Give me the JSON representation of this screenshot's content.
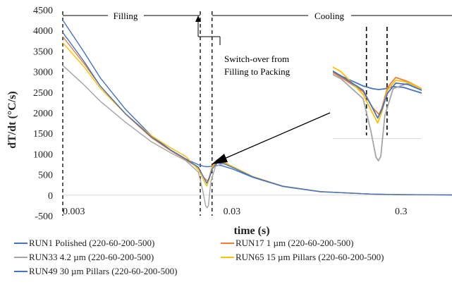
{
  "chart_data": {
    "type": "line",
    "xlabel": "time (s)",
    "ylabel": "dT/dt (°C/s)",
    "x_scale": "log",
    "xlim": [
      0.003,
      0.6
    ],
    "ylim": [
      -500,
      4500
    ],
    "x_ticks": [
      {
        "value": 0.003,
        "label": "0.003"
      },
      {
        "value": 0.03,
        "label": "0.03"
      },
      {
        "value": 0.3,
        "label": "0.3"
      }
    ],
    "y_ticks": [
      -500,
      0,
      500,
      1000,
      1500,
      2000,
      2500,
      3000,
      3500,
      4000,
      4500
    ],
    "grid": false,
    "legend_position": "bottom",
    "phases": [
      {
        "label": "Filling",
        "x_start": 0.003,
        "x_end": 0.0195
      },
      {
        "label": "Cooling",
        "x_start": 0.0229,
        "x_end": 0.6
      }
    ],
    "markers": [
      0.0195,
      0.0229
    ],
    "annotation": "Switch-over from\nFilling to Packing",
    "series": [
      {
        "name": "RUN1 Polished (220-60-200-500)",
        "color": "#4472C4",
        "x": [
          0.003,
          0.004,
          0.005,
          0.007,
          0.01,
          0.013,
          0.016,
          0.019,
          0.0205,
          0.0215,
          0.0225,
          0.024,
          0.026,
          0.03,
          0.04,
          0.06,
          0.1,
          0.2,
          0.3,
          0.6
        ],
        "y": [
          4250,
          3480,
          2850,
          2100,
          1450,
          1100,
          880,
          740,
          700,
          690,
          700,
          730,
          720,
          640,
          430,
          210,
          80,
          25,
          12,
          5
        ]
      },
      {
        "name": "RUN17 1 µm (220-60-200-500)",
        "color": "#ED7D31",
        "x": [
          0.003,
          0.004,
          0.005,
          0.007,
          0.01,
          0.013,
          0.016,
          0.019,
          0.0205,
          0.0215,
          0.022,
          0.023,
          0.0245,
          0.027,
          0.03,
          0.04,
          0.06,
          0.1,
          0.2,
          0.3,
          0.6
        ],
        "y": [
          3850,
          3200,
          2650,
          1980,
          1400,
          1080,
          860,
          660,
          430,
          340,
          430,
          720,
          860,
          800,
          700,
          450,
          220,
          85,
          25,
          12,
          5
        ]
      },
      {
        "name": "RUN33 4.2 µm (220-60-200-500)",
        "color": "#A5A5A5",
        "x": [
          0.003,
          0.004,
          0.005,
          0.007,
          0.01,
          0.013,
          0.016,
          0.019,
          0.0202,
          0.021,
          0.0214,
          0.0218,
          0.0225,
          0.024,
          0.027,
          0.03,
          0.04,
          0.06,
          0.1,
          0.2,
          0.3,
          0.6
        ],
        "y": [
          3150,
          2680,
          2280,
          1780,
          1300,
          1030,
          840,
          560,
          100,
          -260,
          -310,
          -250,
          320,
          700,
          780,
          700,
          440,
          215,
          85,
          25,
          12,
          5
        ]
      },
      {
        "name": "RUN65 15 µm Pillars (220-60-200-500)",
        "color": "#FFC000",
        "x": [
          0.003,
          0.004,
          0.005,
          0.007,
          0.01,
          0.013,
          0.016,
          0.019,
          0.0205,
          0.0213,
          0.022,
          0.023,
          0.0245,
          0.027,
          0.03,
          0.04,
          0.06,
          0.1,
          0.2,
          0.3,
          0.6
        ],
        "y": [
          3700,
          3120,
          2600,
          1980,
          1450,
          1150,
          940,
          620,
          350,
          220,
          380,
          680,
          820,
          790,
          700,
          450,
          220,
          85,
          25,
          12,
          5
        ]
      },
      {
        "name": "RUN49 30 µm Pillars (220-60-200-500)",
        "color": "#4472C4",
        "x": [
          0.003,
          0.004,
          0.005,
          0.007,
          0.01,
          0.013,
          0.016,
          0.019,
          0.0205,
          0.0213,
          0.022,
          0.023,
          0.0245,
          0.027,
          0.03,
          0.04,
          0.06,
          0.1,
          0.2,
          0.3,
          0.6
        ],
        "y": [
          3950,
          3250,
          2650,
          1990,
          1420,
          1100,
          880,
          680,
          420,
          290,
          410,
          640,
          780,
          760,
          680,
          440,
          215,
          85,
          25,
          12,
          5
        ]
      }
    ]
  }
}
